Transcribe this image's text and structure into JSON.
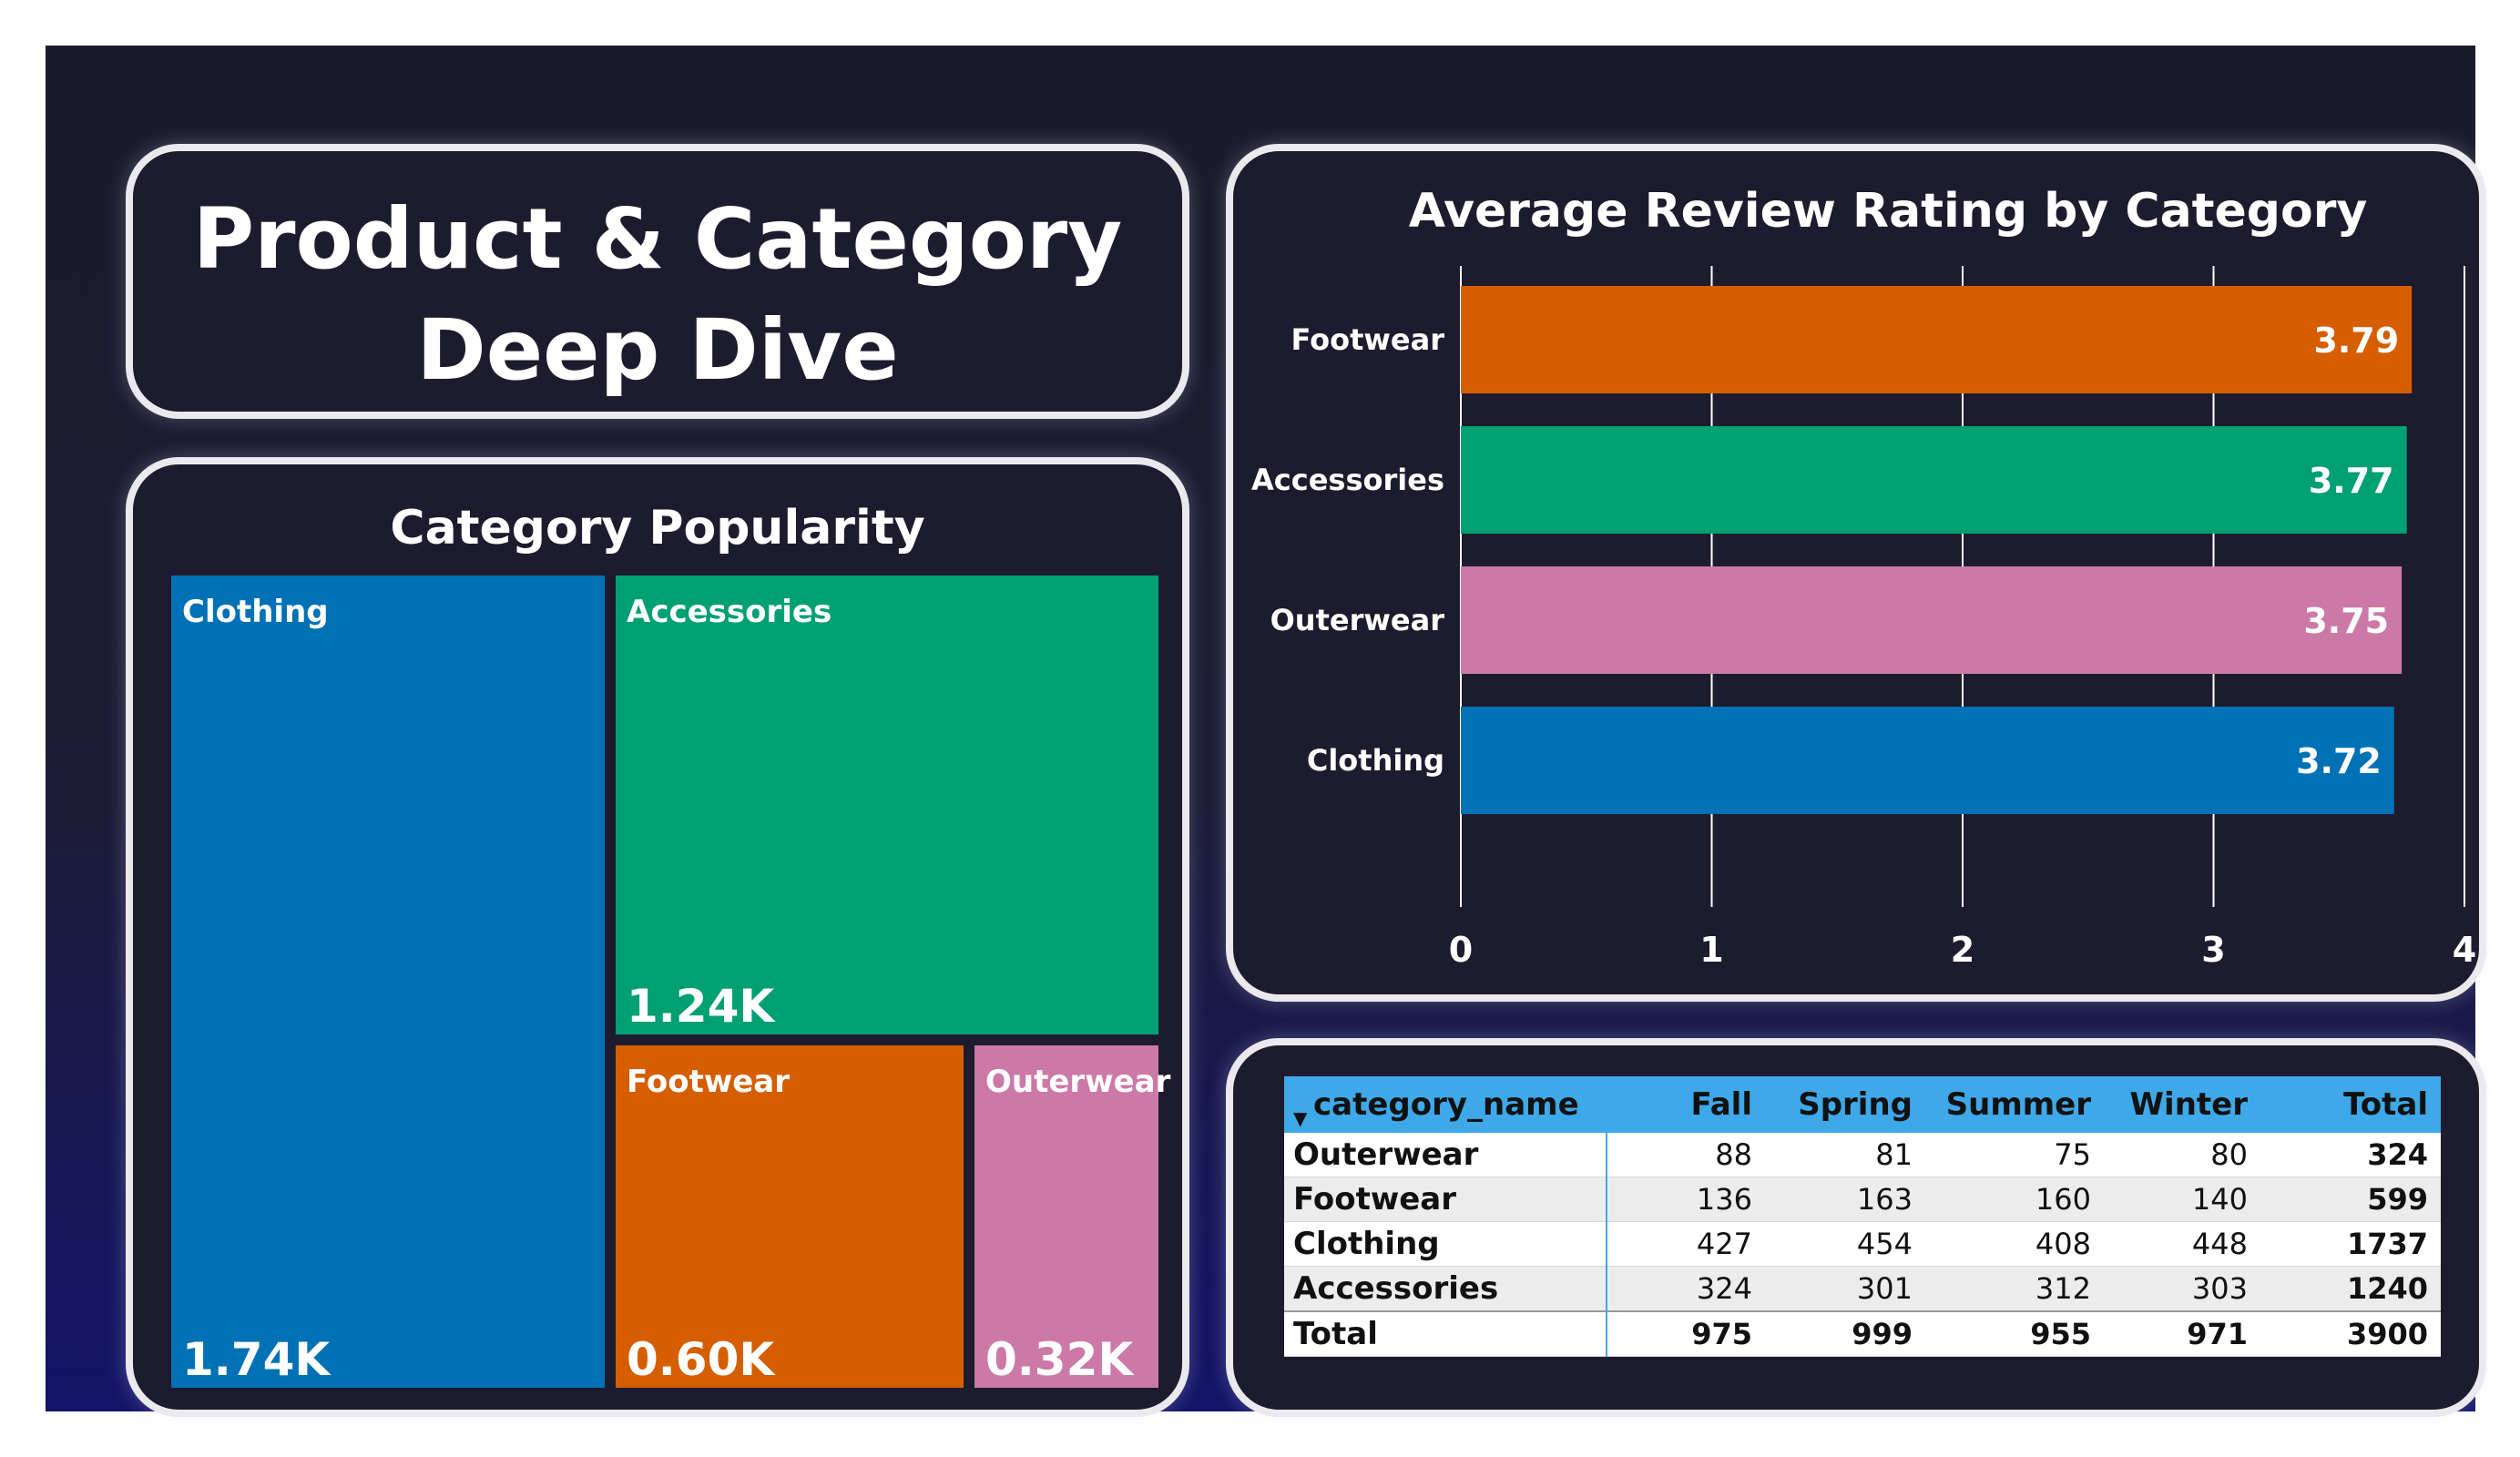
{
  "page": {
    "title": "Product & Category\nDeep Dive"
  },
  "treemap": {
    "title": "Category Popularity",
    "items": [
      {
        "name": "Clothing",
        "label": "1.74K",
        "color": "#0071b5"
      },
      {
        "name": "Accessories",
        "label": "1.24K",
        "color": "#00a073"
      },
      {
        "name": "Footwear",
        "label": "0.60K",
        "color": "#d55e00"
      },
      {
        "name": "Outerwear",
        "label": "0.32K",
        "color": "#cc79a7"
      }
    ]
  },
  "chart_data": [
    {
      "type": "bar",
      "orientation": "horizontal",
      "title": "Average Review Rating by Category",
      "categories": [
        "Footwear",
        "Accessories",
        "Outerwear",
        "Clothing"
      ],
      "values": [
        3.79,
        3.77,
        3.75,
        3.72
      ],
      "colors": [
        "#d55e00",
        "#00a073",
        "#cc79a7",
        "#0071b5"
      ],
      "xlim": [
        0,
        4
      ],
      "xticks": [
        0,
        1,
        2,
        3,
        4
      ],
      "grid": true
    }
  ],
  "table": {
    "columns": [
      "category_name",
      "Fall",
      "Spring",
      "Summer",
      "Winter",
      "Total"
    ],
    "rows": [
      {
        "name": "Outerwear",
        "values": [
          "88",
          "81",
          "75",
          "80",
          "324"
        ]
      },
      {
        "name": "Footwear",
        "values": [
          "136",
          "163",
          "160",
          "140",
          "599"
        ]
      },
      {
        "name": "Clothing",
        "values": [
          "427",
          "454",
          "408",
          "448",
          "1737"
        ]
      },
      {
        "name": "Accessories",
        "values": [
          "324",
          "301",
          "312",
          "303",
          "1240"
        ]
      }
    ],
    "total": {
      "name": "Total",
      "values": [
        "975",
        "999",
        "955",
        "971",
        "3900"
      ]
    }
  },
  "colors": {
    "background_top": "#1b1b2c",
    "background_bottom": "#14146a",
    "panel": "#1d1c2f",
    "panel_border": "#e9e9ee",
    "table_header": "#3ea8e8"
  }
}
